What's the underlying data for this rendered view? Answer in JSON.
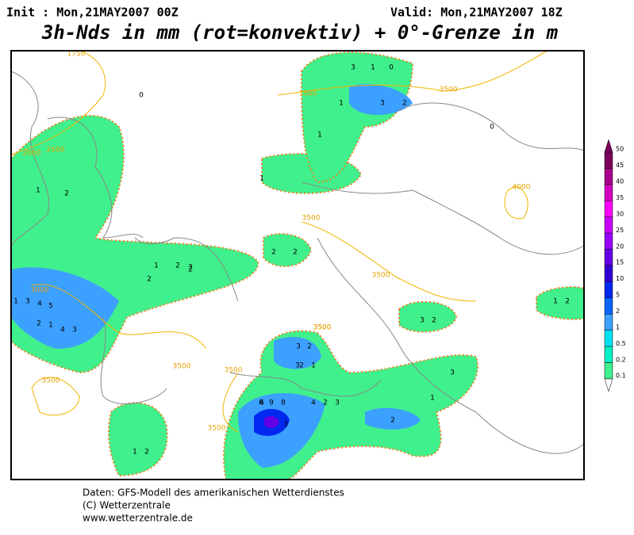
{
  "header": {
    "init": "Init : Mon,21MAY2007 00Z",
    "valid": "Valid: Mon,21MAY2007 18Z",
    "title": "3h-Nds in mm (rot=konvektiv) + 0°-Grenze in m"
  },
  "legend": {
    "levels": [
      50,
      45,
      40,
      35,
      30,
      25,
      20,
      15,
      10,
      5,
      2,
      1,
      0.5,
      0.2,
      0.1
    ],
    "colors": [
      "#7a005a",
      "#a8008c",
      "#d400c0",
      "#ff00ff",
      "#c800ff",
      "#9600ff",
      "#6400e6",
      "#3200d2",
      "#0028f0",
      "#0a64ff",
      "#3ca0ff",
      "#00e0f0",
      "#00f0c8",
      "#40f08c"
    ]
  },
  "map": {
    "contour_labels": [
      1750,
      2000,
      2500,
      3500,
      3500,
      3500,
      3000,
      3500,
      3500,
      3500,
      3500,
      3500,
      3500,
      4000,
      3500
    ],
    "grid_values": [
      0,
      1,
      2,
      3,
      1,
      0,
      1,
      3,
      2,
      1,
      1,
      2,
      2,
      1,
      2,
      2,
      3,
      2,
      1,
      3,
      4,
      5,
      4,
      3,
      2,
      1,
      3,
      2,
      1,
      3,
      2,
      4,
      3,
      6,
      9,
      8,
      4,
      2,
      3,
      1,
      2,
      3,
      2,
      3,
      0,
      1,
      2,
      1,
      2
    ]
  },
  "footer": {
    "lines": [
      "Daten: GFS-Modell des amerikanischen Wetterdienstes",
      "(C) Wetterzentrale",
      "www.wetterzentrale.de"
    ]
  }
}
